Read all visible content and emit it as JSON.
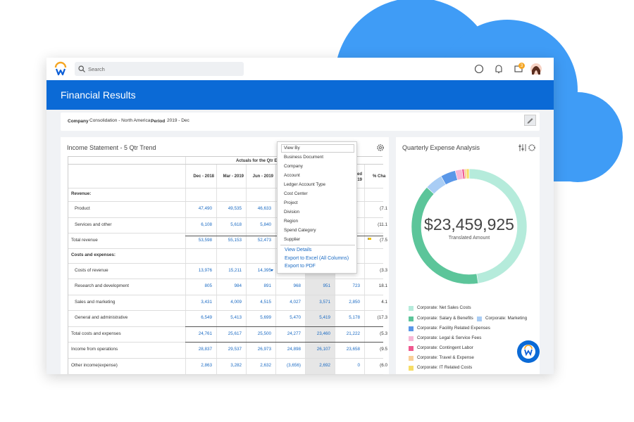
{
  "app": {
    "search_placeholder": "Search",
    "notification_count": "3"
  },
  "header": {
    "title": "Financial Results"
  },
  "filters": {
    "company_label": "Company",
    "company": "Consolidation - North America",
    "period_label": "Period",
    "period": "2019 - Dec"
  },
  "income_statement": {
    "title": "Income Statement - 5 Qtr Trend",
    "group_header": "Actuals for the Qtr En",
    "columns": [
      "Dec - 2018",
      "Mar - 2019",
      "Jun - 2019",
      null,
      null,
      [
        "ed",
        "19"
      ],
      "% Cha"
    ],
    "rows": [
      {
        "label": "Revenue:",
        "type": "section"
      },
      {
        "label": "Product",
        "type": "item",
        "cells": [
          "47,490",
          "49,535",
          "46,633",
          null,
          null,
          null,
          "(7.1"
        ]
      },
      {
        "label": "Services and other",
        "type": "item",
        "cells": [
          "6,108",
          "5,618",
          "5,840",
          null,
          null,
          null,
          "(11.1"
        ]
      },
      {
        "label": "Total revenue",
        "type": "total",
        "cells": [
          "53,598",
          "55,153",
          "52,473",
          null,
          null,
          null,
          "(7.5"
        ]
      },
      {
        "label": "Costs and expenses:",
        "type": "section"
      },
      {
        "label": "Costs of revenue",
        "type": "item",
        "cells": [
          "13,976",
          "15,211",
          "14,395",
          null,
          null,
          null,
          "(3.3"
        ]
      },
      {
        "label": "Research and development",
        "type": "item",
        "cells": [
          "805",
          "984",
          "891",
          "968",
          "951",
          "723",
          "18.1"
        ]
      },
      {
        "label": "Sales and marketing",
        "type": "item",
        "cells": [
          "3,431",
          "4,009",
          "4,515",
          "4,027",
          "3,571",
          "2,850",
          "4.1"
        ]
      },
      {
        "label": "General and administrative",
        "type": "item",
        "cells": [
          "6,549",
          "5,413",
          "5,699",
          "5,470",
          "5,419",
          "5,178",
          "(17.3"
        ]
      },
      {
        "label": "Total costs and expenses",
        "type": "total",
        "cells": [
          "24,761",
          "25,617",
          "25,500",
          "24,277",
          "23,460",
          "21,222",
          "(5.3"
        ]
      },
      {
        "label": "Income from operations",
        "type": "total",
        "cells": [
          "28,837",
          "29,537",
          "26,973",
          "24,898",
          "26,107",
          "23,658",
          "(9.5"
        ]
      },
      {
        "label": "Other income(expense)",
        "type": "total",
        "cells": [
          "2,863",
          "3,282",
          "2,632",
          "(3,656)",
          "2,692",
          "0",
          "(6.0"
        ]
      }
    ]
  },
  "menu": {
    "header": "View By",
    "items": [
      "Business Document",
      "Company",
      "Account",
      "Ledger Account Type",
      "Cost Center",
      "Project",
      "Division",
      "Region",
      "Spend Category",
      "Supplier"
    ],
    "actions": [
      "View Details",
      "Export to Excel (All Columns)",
      "Export to PDF"
    ]
  },
  "chart_data": {
    "type": "pie",
    "title": "Quarterly Expense Analysis",
    "total": "$23,459,925",
    "total_label": "Translated Amount",
    "categories": [
      "Corporate: Net Sales Costs",
      "Corporate: Salary & Benefits",
      "Corporate: Marketing",
      "Corporate: Facility Related Expenses",
      "Corporate: Legal & Service Fees",
      "Corporate: Contingent Labor",
      "Corporate: Travel & Expense",
      "Corporate: IT Related Costs"
    ],
    "values": [
      47.5,
      39.4,
      5,
      4.2,
      1.9,
      0.6,
      0.6,
      0.8
    ],
    "colors": [
      "#b5ebdb",
      "#5cc59a",
      "#a9cdf5",
      "#5a97e8",
      "#f7b7d6",
      "#f0588f",
      "#f9cf98",
      "#f6dd66"
    ]
  }
}
